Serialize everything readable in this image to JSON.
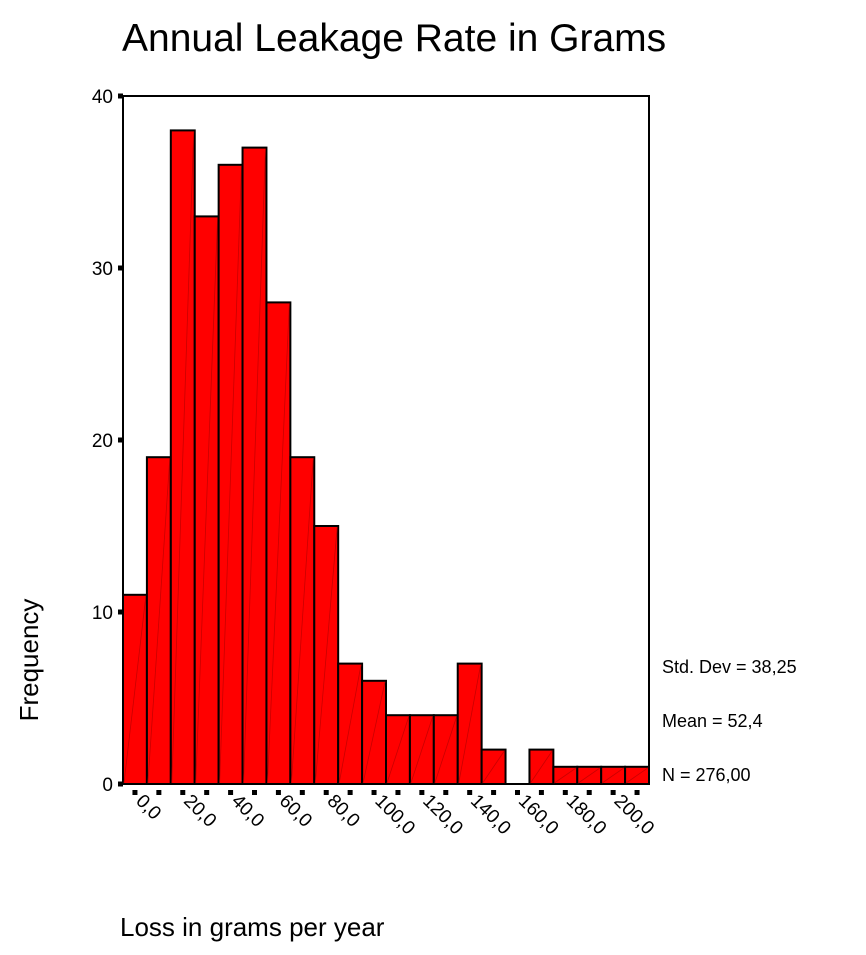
{
  "chart_data": {
    "type": "bar",
    "title": "Annual Leakage Rate in Grams",
    "xlabel": "Loss in grams per year",
    "ylabel": "Frequency",
    "ylim": [
      0,
      40
    ],
    "y_ticks": [
      "0",
      "10",
      "20",
      "30",
      "40"
    ],
    "x_ticks": [
      "0,0",
      "20,0",
      "40,0",
      "60,0",
      "80,0",
      "100,0",
      "120,0",
      "140,0",
      "160,0",
      "180,0",
      "200,0"
    ],
    "bin_width": 10,
    "bin_start": -5,
    "values": [
      11,
      19,
      38,
      33,
      36,
      37,
      28,
      19,
      15,
      7,
      6,
      4,
      4,
      4,
      7,
      2,
      0,
      2,
      1,
      1,
      1,
      1
    ],
    "bar_color": "#ff0000",
    "grid": false,
    "stats": [
      "Std. Dev = 38,25",
      "Mean = 52,4",
      "N = 276,00"
    ]
  }
}
